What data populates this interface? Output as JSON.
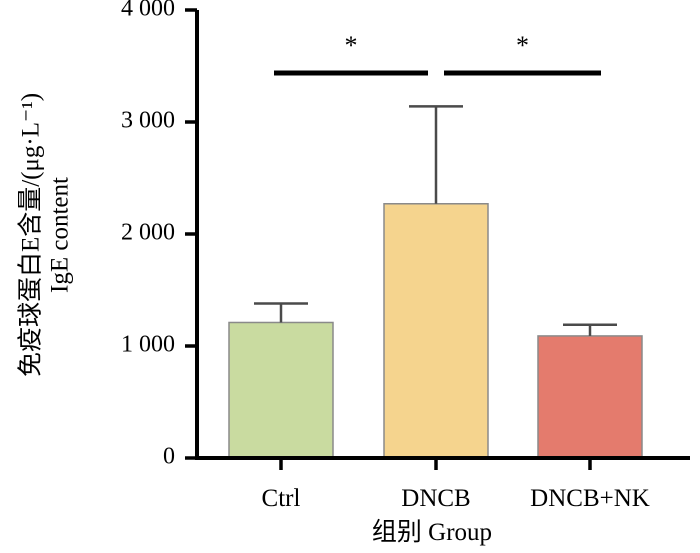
{
  "chart_data": {
    "type": "bar",
    "categories": [
      "Ctrl",
      "DNCB",
      "DNCB+NK"
    ],
    "values": [
      1210,
      2270,
      1090
    ],
    "error_upper": [
      1380,
      3140,
      1190
    ],
    "colors": [
      "#c9dba0",
      "#f5d48e",
      "#e47b6d"
    ],
    "xlabel": "组别 Group",
    "ylabel": [
      "免疫球蛋白E含量/(μg·L⁻¹)",
      "IgE content"
    ],
    "ylim": [
      0,
      4000
    ],
    "yticks": [
      0,
      1000,
      2000,
      3000,
      4000
    ],
    "ytick_labels": [
      "0",
      "1 000",
      "2 000",
      "3 000",
      "4 000"
    ],
    "grid": false,
    "significance": [
      {
        "from": "Ctrl",
        "to": "DNCB",
        "label": "*"
      },
      {
        "from": "DNCB",
        "to": "DNCB+NK",
        "label": "*"
      }
    ]
  }
}
